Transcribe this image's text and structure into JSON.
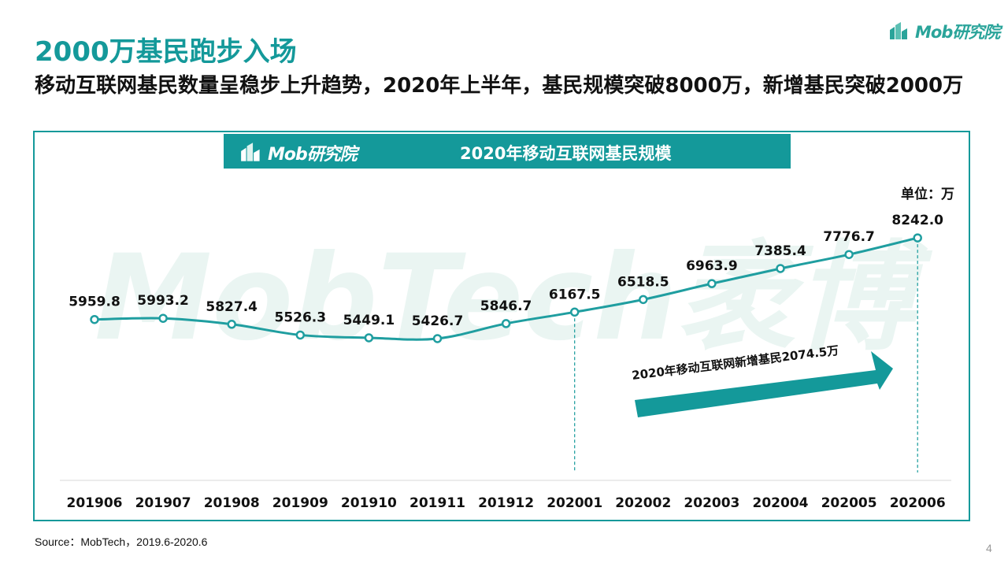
{
  "title": "2000万基民跑步入场",
  "subtitle": "移动互联网基民数量呈稳步上升趋势，2020年上半年，基民规模突破8000万，新增基民突破2000万",
  "logo_text": "Mob研究院",
  "watermark_text": "MobTech袤博",
  "unit_label": "单位：万",
  "annotation": "2020年移动互联网新增基民2074.5万",
  "source": "Source：MobTech，2019.6-2020.6",
  "page_number": "4",
  "colors": {
    "accent": "#14999a",
    "line": "#1f9ea0",
    "text": "#111111"
  },
  "chart_data": {
    "type": "line",
    "title": "2020年移动互联网基民规模",
    "categories": [
      "201906",
      "201907",
      "201908",
      "201909",
      "201910",
      "201911",
      "201912",
      "202001",
      "202002",
      "202003",
      "202004",
      "202005",
      "202006"
    ],
    "series": [
      {
        "values": [
          5959.8,
          5993.2,
          5827.4,
          5526.3,
          5449.1,
          5426.7,
          5846.7,
          6167.5,
          6518.5,
          6963.9,
          7385.4,
          7776.7,
          8242.0
        ]
      }
    ],
    "data_labels": [
      "5959.8",
      "5993.2",
      "5827.4",
      "5526.3",
      "5449.1",
      "5426.7",
      "5846.7",
      "6167.5",
      "6518.5",
      "6963.9",
      "7385.4",
      "7776.7",
      "8242.0"
    ],
    "reference_lines_at": [
      "202001",
      "202006"
    ],
    "grid": false,
    "legend": "none"
  }
}
